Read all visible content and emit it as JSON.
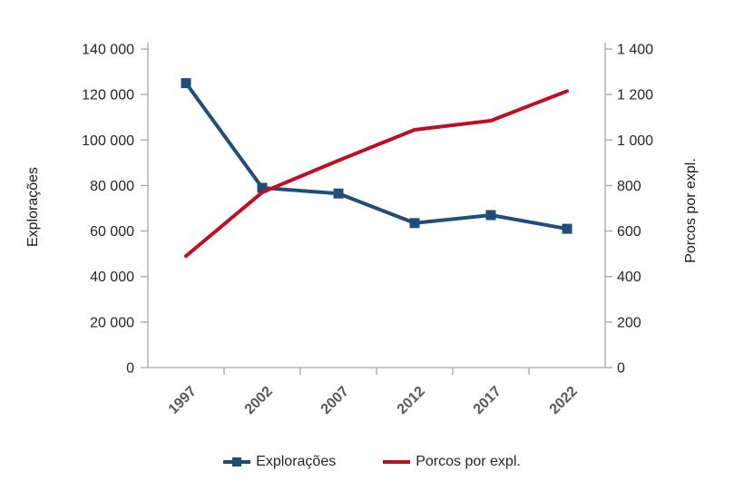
{
  "chart_data": {
    "type": "line",
    "title": "",
    "categories": [
      "1997",
      "2002",
      "2007",
      "2012",
      "2017",
      "2022"
    ],
    "series": [
      {
        "name": "Explorações",
        "axis": "left",
        "color": "#1F4E79",
        "marker": "square",
        "values": [
          125000,
          79000,
          76500,
          63500,
          67000,
          61000
        ]
      },
      {
        "name": "Porcos por expl.",
        "axis": "right",
        "color": "#C00D24",
        "marker": "none",
        "values": [
          490,
          770,
          910,
          1045,
          1085,
          1215
        ]
      }
    ],
    "left_axis": {
      "title": "Explorações",
      "min": 0,
      "max": 140000,
      "tick_step": 20000,
      "tick_labels": [
        "0",
        "20 000",
        "40 000",
        "60 000",
        "80 000",
        "100 000",
        "120 000",
        "140 000"
      ]
    },
    "right_axis": {
      "title": "Porcos por expl.",
      "min": 0,
      "max": 1400,
      "tick_step": 200,
      "tick_labels": [
        "0",
        "200",
        "400",
        "600",
        "800",
        "1 000",
        "1 200",
        "1 400"
      ]
    },
    "legend_position": "bottom",
    "grid": false
  },
  "styles": {
    "axis_color": "#A6A6A6",
    "tick_label_color": "#262626",
    "x_label_color": "#595959"
  }
}
